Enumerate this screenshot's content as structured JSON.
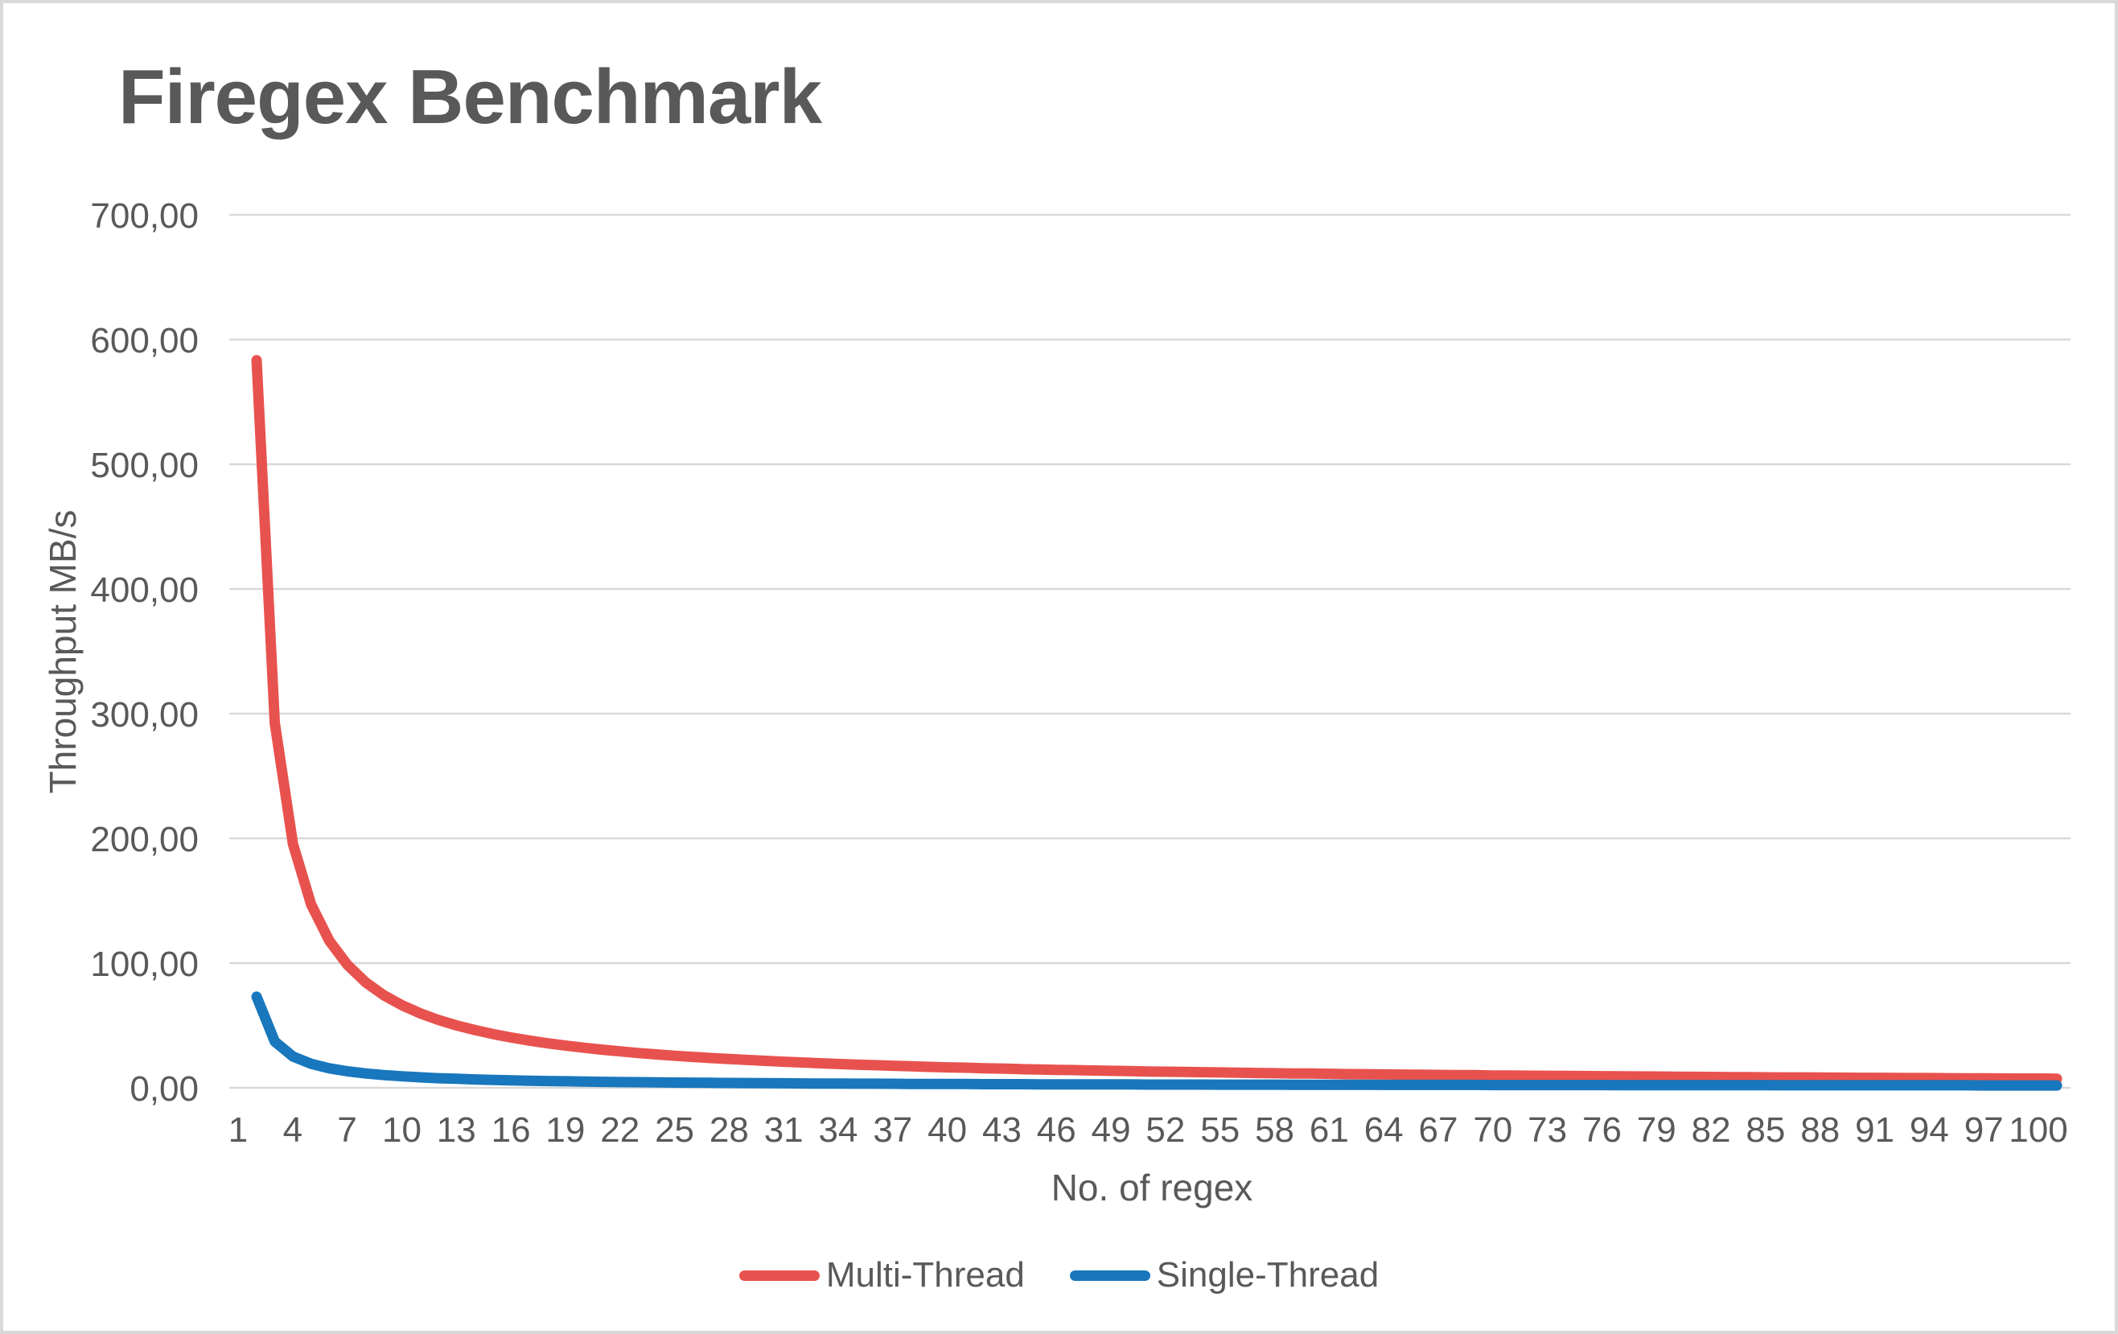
{
  "window": {
    "background": "#ffffff",
    "frame_border_color": "#d9d9d9"
  },
  "chart": {
    "title": "Firegex Benchmark",
    "title_color": "#595959",
    "text_color": "#595959",
    "gridline_color": "#d9d9d9",
    "x_axis_title": "No. of regex",
    "y_axis_title": "Throughput MB/s",
    "y_ticks": [
      700,
      600,
      500,
      400,
      300,
      200,
      100,
      0
    ],
    "y_tick_labels": [
      "700,00",
      "600,00",
      "500,00",
      "400,00",
      "300,00",
      "200,00",
      "100,00",
      "0,00"
    ],
    "x_tick_labels": [
      "1",
      "4",
      "7",
      "10",
      "13",
      "16",
      "19",
      "22",
      "25",
      "28",
      "31",
      "34",
      "37",
      "40",
      "43",
      "46",
      "49",
      "52",
      "55",
      "58",
      "61",
      "64",
      "67",
      "70",
      "73",
      "76",
      "79",
      "82",
      "85",
      "88",
      "91",
      "94",
      "97",
      "100"
    ],
    "legend": [
      {
        "label": "Multi-Thread",
        "color": "#e8524e"
      },
      {
        "label": "Single-Thread",
        "color": "#1877bd"
      }
    ]
  },
  "chart_data": {
    "type": "line",
    "title": "Firegex Benchmark",
    "xlabel": "No. of regex",
    "ylabel": "Throughput MB/s",
    "ylim": [
      0,
      700
    ],
    "y_ticks": [
      0,
      100,
      200,
      300,
      400,
      500,
      600,
      700
    ],
    "x_tick_step": 3,
    "grid": "horizontal",
    "legend_position": "bottom",
    "x": [
      1,
      2,
      3,
      4,
      5,
      6,
      7,
      8,
      9,
      10,
      11,
      12,
      13,
      14,
      15,
      16,
      17,
      18,
      19,
      20,
      21,
      22,
      23,
      24,
      25,
      26,
      27,
      28,
      29,
      30,
      31,
      32,
      33,
      34,
      35,
      36,
      37,
      38,
      39,
      40,
      41,
      42,
      43,
      44,
      45,
      46,
      47,
      48,
      49,
      50,
      51,
      52,
      53,
      54,
      55,
      56,
      57,
      58,
      59,
      60,
      61,
      62,
      63,
      64,
      65,
      66,
      67,
      68,
      69,
      70,
      71,
      72,
      73,
      74,
      75,
      76,
      77,
      78,
      79,
      80,
      81,
      82,
      83,
      84,
      85,
      86,
      87,
      88,
      89,
      90,
      91,
      92,
      93,
      94,
      95,
      96,
      97,
      98,
      99,
      100
    ],
    "series": [
      {
        "name": "Multi-Thread",
        "color": "#e8524e",
        "values": [
          583.4,
          292.5,
          195.5,
          147.0,
          117.9,
          98.5,
          84.6,
          74.2,
          66.2,
          59.7,
          54.4,
          50.0,
          46.3,
          43.1,
          40.3,
          37.9,
          35.7,
          33.8,
          32.1,
          30.6,
          29.2,
          27.9,
          26.8,
          25.7,
          24.8,
          23.9,
          23.0,
          22.3,
          21.6,
          20.9,
          20.3,
          19.7,
          19.1,
          18.6,
          18.1,
          17.7,
          17.2,
          16.8,
          16.4,
          16.1,
          15.7,
          15.4,
          15.0,
          14.7,
          14.4,
          14.2,
          13.9,
          13.6,
          13.4,
          13.1,
          12.9,
          12.7,
          12.5,
          12.3,
          12.1,
          11.9,
          11.7,
          11.5,
          11.4,
          11.2,
          11.0,
          10.9,
          10.7,
          10.6,
          10.5,
          10.3,
          10.2,
          10.1,
          9.9,
          9.8,
          9.7,
          9.6,
          9.5,
          9.4,
          9.3,
          9.2,
          9.1,
          9.0,
          8.9,
          8.8,
          8.7,
          8.6,
          8.5,
          8.4,
          8.3,
          8.3,
          8.2,
          8.1,
          8.0,
          8.0,
          7.9,
          7.8,
          7.8,
          7.7,
          7.6,
          7.6,
          7.5,
          7.4,
          7.4,
          7.3
        ]
      },
      {
        "name": "Single-Thread",
        "color": "#1877bd",
        "values": [
          73.0,
          37.1,
          25.1,
          19.2,
          15.6,
          13.2,
          11.5,
          10.2,
          9.2,
          8.4,
          7.7,
          7.2,
          6.7,
          6.3,
          6.0,
          5.7,
          5.4,
          5.2,
          5.0,
          4.8,
          4.6,
          4.5,
          4.3,
          4.2,
          4.1,
          4.0,
          3.9,
          3.8,
          3.7,
          3.6,
          3.5,
          3.4,
          3.4,
          3.3,
          3.3,
          3.2,
          3.1,
          3.1,
          3.0,
          3.0,
          2.9,
          2.9,
          2.9,
          2.8,
          2.8,
          2.8,
          2.7,
          2.7,
          2.7,
          2.6,
          2.6,
          2.6,
          2.6,
          2.5,
          2.5,
          2.5,
          2.5,
          2.4,
          2.4,
          2.4,
          2.4,
          2.4,
          2.3,
          2.3,
          2.3,
          2.3,
          2.3,
          2.3,
          2.2,
          2.2,
          2.2,
          2.2,
          2.2,
          2.2,
          2.2,
          2.1,
          2.1,
          2.1,
          2.1,
          2.1,
          2.1,
          2.1,
          2.1,
          2.1,
          2.0,
          2.0,
          2.0,
          2.0,
          2.0,
          2.0,
          2.0,
          2.0,
          2.0,
          2.0,
          2.0,
          1.9,
          1.9,
          1.9,
          1.9,
          1.9
        ]
      }
    ]
  }
}
